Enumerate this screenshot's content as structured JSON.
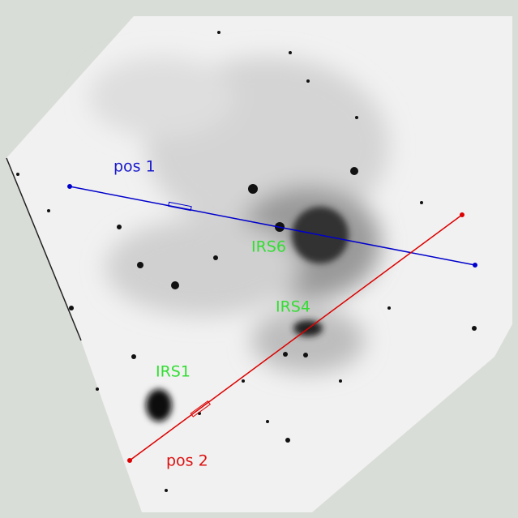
{
  "labels": {
    "slits": [
      "pos 1",
      "pos 2"
    ],
    "sources": [
      "IRS6",
      "IRS4",
      "IRS1"
    ]
  }
}
